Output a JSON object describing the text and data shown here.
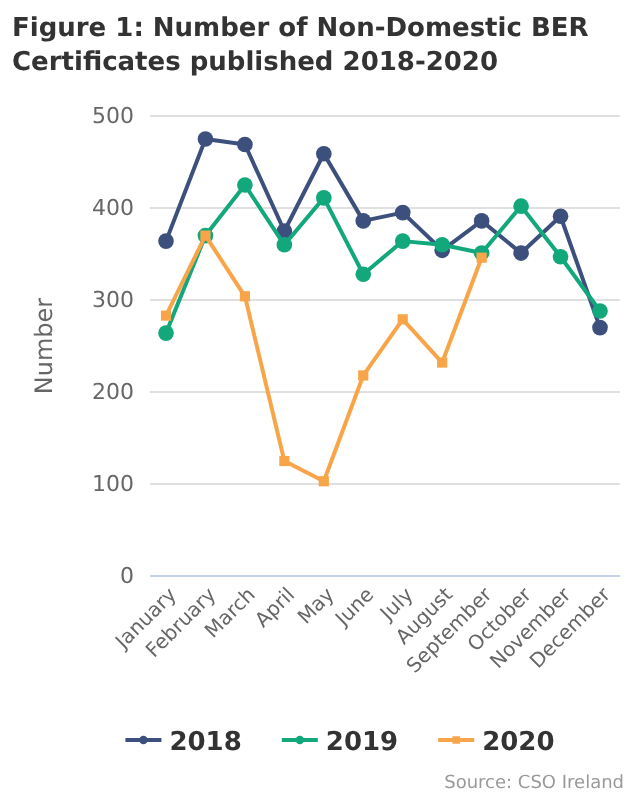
{
  "chart_data": {
    "type": "line",
    "title": "Figure 1: Number of Non-Domestic BER Certificates published 2018-2020",
    "ylabel": "Number",
    "categories": [
      "January",
      "February",
      "March",
      "April",
      "May",
      "June",
      "July",
      "August",
      "September",
      "October",
      "November",
      "December"
    ],
    "series": [
      {
        "name": "2018",
        "color": "#3d4f7c",
        "marker": "circle",
        "values": [
          364,
          475,
          469,
          375,
          459,
          386,
          395,
          354,
          386,
          351,
          391,
          270
        ]
      },
      {
        "name": "2019",
        "color": "#12a87c",
        "marker": "circle",
        "values": [
          264,
          370,
          425,
          360,
          411,
          328,
          364,
          360,
          351,
          402,
          347,
          288
        ]
      },
      {
        "name": "2020",
        "color": "#f8a54a",
        "marker": "square",
        "values": [
          283,
          370,
          304,
          125,
          103,
          218,
          279,
          232,
          346,
          null,
          null,
          null
        ]
      }
    ],
    "ylim": [
      0,
      500
    ],
    "yticks": [
      0,
      100,
      200,
      300,
      400,
      500
    ],
    "grid": "y",
    "legend": "bottom",
    "annotations": [
      "Source: CSO Ireland"
    ]
  }
}
